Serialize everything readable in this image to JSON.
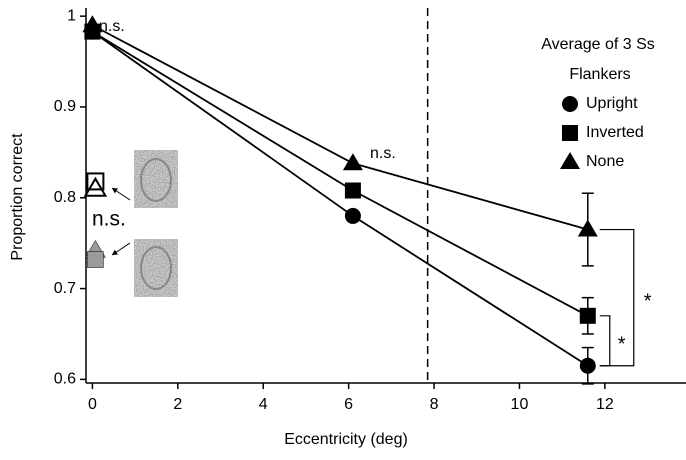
{
  "chart_data": {
    "type": "line",
    "xlabel": "Eccentricity (deg)",
    "ylabel": "Proportion correct",
    "xlim": [
      -0.15,
      13.9
    ],
    "ylim": [
      0.596,
      1.009
    ],
    "xticks": [
      0,
      2,
      4,
      6,
      8,
      10,
      12
    ],
    "yticks": [
      0.6,
      0.7,
      0.8,
      0.9,
      1
    ],
    "reference_x": 7.85,
    "legend_title": "Average of 3 Ss",
    "legend_subtitle": "Flankers",
    "series": [
      {
        "name": "Upright",
        "color": "#000000",
        "marker": "circle",
        "x": [
          0,
          6.1,
          11.6
        ],
        "values": [
          0.983,
          0.78,
          0.615
        ],
        "errors": [
          null,
          null,
          0.02
        ]
      },
      {
        "name": "Inverted",
        "color": "#000000",
        "marker": "square",
        "x": [
          0,
          6.1,
          11.6
        ],
        "values": [
          0.983,
          0.808,
          0.67
        ],
        "errors": [
          null,
          null,
          0.02
        ]
      },
      {
        "name": "None",
        "color": "#000000",
        "marker": "triangle",
        "x": [
          0,
          6.1,
          11.6
        ],
        "values": [
          0.99,
          0.838,
          0.765
        ],
        "errors": [
          null,
          null,
          0.04
        ]
      }
    ],
    "inset_points": [
      {
        "marker": "square",
        "fill": "none",
        "x": 0.07,
        "y": 0.818
      },
      {
        "marker": "triangle",
        "fill": "none",
        "x": 0.07,
        "y": 0.81
      },
      {
        "marker": "triangle",
        "fill": "#9a9a9a",
        "x": 0.07,
        "y": 0.742
      },
      {
        "marker": "square",
        "fill": "#9a9a9a",
        "x": 0.07,
        "y": 0.732
      }
    ],
    "annotations": [
      "n.s.",
      "n.s.",
      "n.s.",
      "*",
      "*"
    ]
  }
}
